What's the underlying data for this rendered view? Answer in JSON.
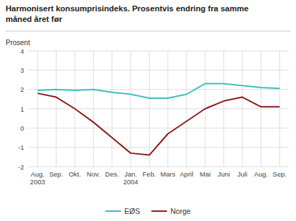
{
  "chart_data": {
    "type": "line",
    "title": "Harmonisert konsumprisindeks. Prosentvis endring fra samme\nmåned året før",
    "y_label": "Prosent",
    "categories": [
      "Aug.\n2003",
      "Sep.",
      "Okt.",
      "Nov.",
      "Des.",
      "Jan.\n2004",
      "Feb.",
      "Mars",
      "April",
      "Mai",
      "Juni",
      "Juli",
      "Aug.",
      "Sep."
    ],
    "series": [
      {
        "name": "EØS",
        "color": "#3dbfbf",
        "values": [
          1.95,
          2.0,
          1.95,
          2.0,
          1.85,
          1.75,
          1.55,
          1.55,
          1.75,
          2.3,
          2.3,
          2.2,
          2.1,
          2.05
        ]
      },
      {
        "name": "Norge",
        "color": "#8b1a1a",
        "values": [
          1.8,
          1.6,
          1.0,
          0.3,
          -0.5,
          -1.3,
          -1.4,
          -0.3,
          0.35,
          1.0,
          1.4,
          1.6,
          1.1,
          1.1
        ]
      }
    ],
    "ylim": [
      -2,
      4
    ],
    "yticks": [
      -2,
      -1,
      0,
      1,
      2,
      3,
      4
    ],
    "grid": true,
    "legend": "bottom"
  }
}
